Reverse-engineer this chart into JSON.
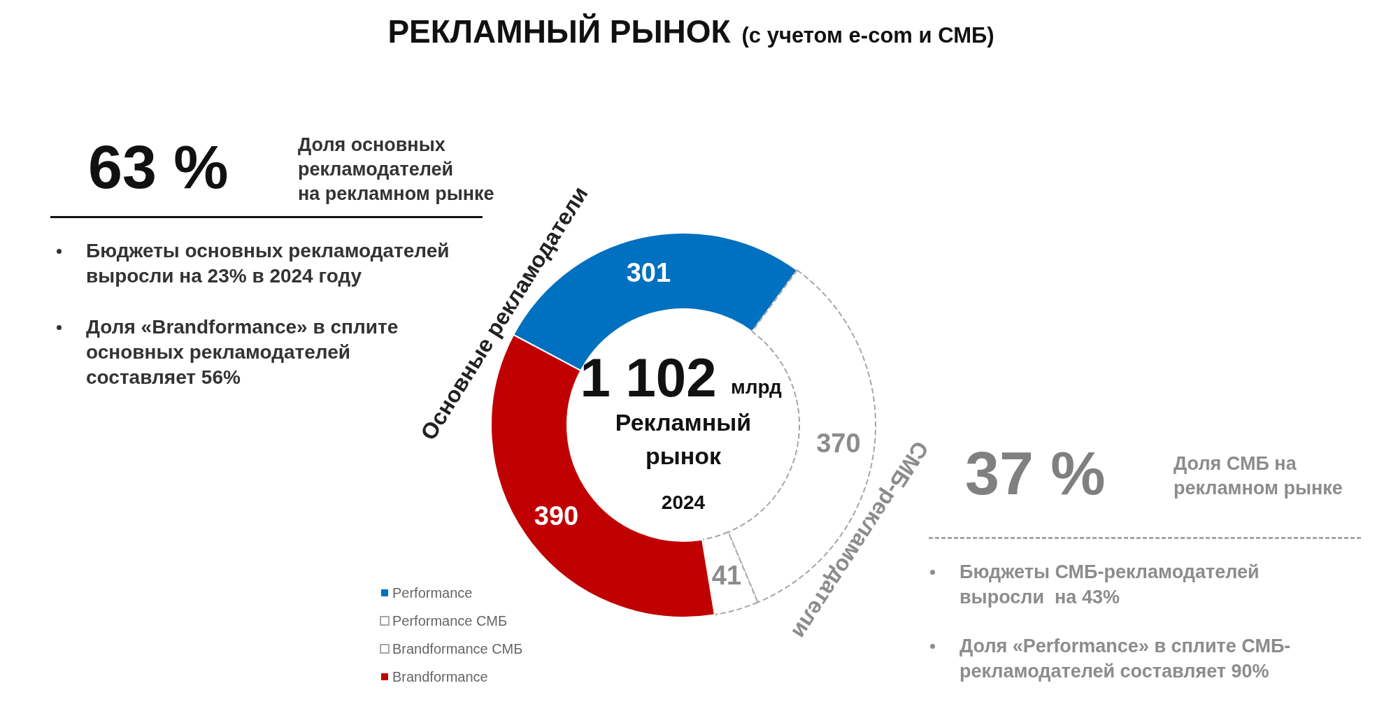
{
  "chart_data": {
    "type": "donut",
    "title": "РЕКЛАМНЫЙ РЫНОК",
    "subtitle": "(с учетом e-com и СМБ)",
    "categories": [
      "Performance",
      "Performance СМБ",
      "Brandformance СМБ",
      "Brandformance"
    ],
    "values": [
      301,
      370,
      41,
      390
    ],
    "colors": [
      "#0070c0",
      "#ffffff",
      "#ffffff",
      "#c00000"
    ],
    "data_labels": true,
    "legend": "bottom left",
    "annotations": [
      "63 %",
      "Доля основных\nрекламодателей\nна рекламном рынке",
      "Бюджеты основных рекламодателей\nвыросли на 23% в 2024 году",
      "Доля «Brandformance» в сплите\nосновных рекламодателей\nсоставляет 56%",
      "37 %",
      "Доля СМБ на\nрекламном рынке",
      "Бюджеты СМБ-рекламодателей\nвыросли  на 43%",
      "Доля «Performance» в сплите СМБ-\nрекламодателей составляет 90%",
      "1 102",
      "млрд",
      "Рекламный\nрынок",
      "2024",
      "Основные рекламодатели",
      "СМБ-рекламодатели"
    ]
  }
}
